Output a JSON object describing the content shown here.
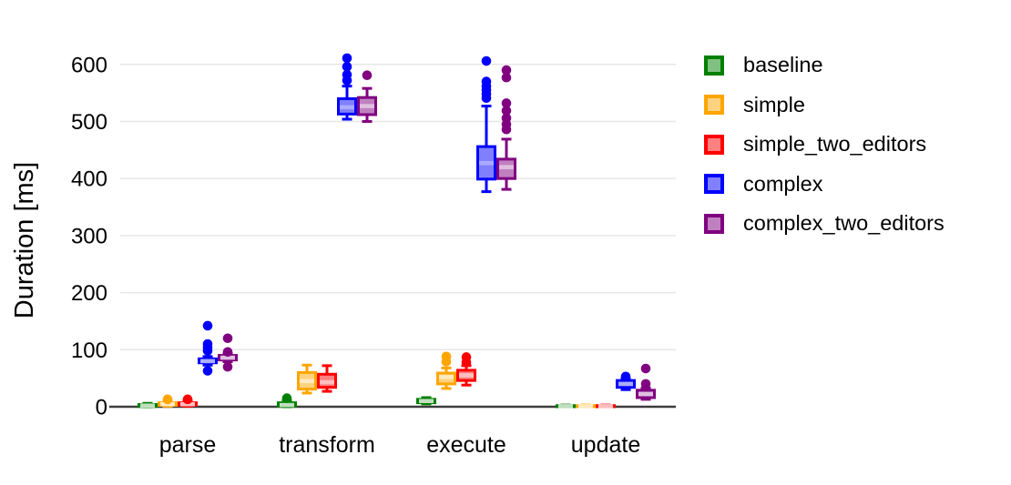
{
  "chart_data": {
    "type": "boxplot",
    "title": "",
    "ylabel": "Duration [ms]",
    "xlabel": "",
    "ylim": [
      0,
      620
    ],
    "yticks": [
      0,
      100,
      200,
      300,
      400,
      500,
      600
    ],
    "grid": "horizontal",
    "legend_position": "right-outside",
    "categories": [
      "parse",
      "transform",
      "execute",
      "update"
    ],
    "series": [
      {
        "name": "baseline",
        "color": "#008000",
        "fill": "#80C080",
        "median_color": "#BFDFBF",
        "boxes": [
          {
            "category": "parse",
            "low": 0,
            "q1": 0.5,
            "median": 2,
            "q3": 4,
            "high": 6,
            "outliers": []
          },
          {
            "category": "transform",
            "low": 0,
            "q1": 1,
            "median": 3,
            "q3": 7,
            "high": 11,
            "outliers": [
              15
            ]
          },
          {
            "category": "execute",
            "low": 5,
            "q1": 7,
            "median": 10,
            "q3": 13,
            "high": 16,
            "outliers": []
          },
          {
            "category": "update",
            "low": 0,
            "q1": 0,
            "median": 1,
            "q3": 2,
            "high": 3,
            "outliers": []
          }
        ]
      },
      {
        "name": "simple",
        "color": "#FFA500",
        "fill": "#FFD280",
        "median_color": "#FFE9BF",
        "boxes": [
          {
            "category": "parse",
            "low": 1,
            "q1": 2.5,
            "median": 4.5,
            "q3": 7,
            "high": 10,
            "outliers": [
              13
            ]
          },
          {
            "category": "transform",
            "low": 24,
            "q1": 31,
            "median": 45,
            "q3": 60,
            "high": 73,
            "outliers": []
          },
          {
            "category": "execute",
            "low": 32,
            "q1": 40,
            "median": 52,
            "q3": 59,
            "high": 68,
            "outliers": [
              88,
              79
            ]
          },
          {
            "category": "update",
            "low": 0,
            "q1": 0,
            "median": 1,
            "q3": 2,
            "high": 3,
            "outliers": []
          }
        ]
      },
      {
        "name": "simple_two_editors",
        "color": "#FF0000",
        "fill": "#FF8080",
        "median_color": "#FFBFBF",
        "boxes": [
          {
            "category": "parse",
            "low": 1,
            "q1": 2.5,
            "median": 4.5,
            "q3": 7,
            "high": 10,
            "outliers": [
              13
            ]
          },
          {
            "category": "transform",
            "low": 27,
            "q1": 34,
            "median": 43,
            "q3": 57,
            "high": 72,
            "outliers": []
          },
          {
            "category": "execute",
            "low": 38,
            "q1": 46,
            "median": 55,
            "q3": 64,
            "high": 72,
            "outliers": [
              87,
              78
            ]
          },
          {
            "category": "update",
            "low": 0,
            "q1": 0,
            "median": 1,
            "q3": 2,
            "high": 3,
            "outliers": []
          }
        ]
      },
      {
        "name": "complex",
        "color": "#0000FF",
        "fill": "#8080FF",
        "median_color": "#ABABFF",
        "boxes": [
          {
            "category": "parse",
            "low": 73,
            "q1": 77,
            "median": 80,
            "q3": 84,
            "high": 88,
            "outliers": [
              142,
              110,
              104,
              98,
              63
            ]
          },
          {
            "category": "transform",
            "low": 504,
            "q1": 513,
            "median": 525,
            "q3": 540,
            "high": 562,
            "outliers": [
              611,
              596,
              582,
              572
            ]
          },
          {
            "category": "execute",
            "low": 377,
            "q1": 399,
            "median": 427,
            "q3": 456,
            "high": 527,
            "outliers": [
              606,
              570,
              562,
              555,
              548,
              541
            ]
          },
          {
            "category": "update",
            "low": 30,
            "q1": 34,
            "median": 40,
            "q3": 46,
            "high": 49,
            "outliers": [
              53
            ]
          }
        ]
      },
      {
        "name": "complex_two_editors",
        "color": "#800080",
        "fill": "#C080C0",
        "median_color": "#DFBFDF",
        "boxes": [
          {
            "category": "parse",
            "low": 79,
            "q1": 82,
            "median": 86,
            "q3": 90,
            "high": 93,
            "outliers": [
              120,
              96,
              70
            ]
          },
          {
            "category": "transform",
            "low": 500,
            "q1": 512,
            "median": 527,
            "q3": 542,
            "high": 558,
            "outliers": [
              581
            ]
          },
          {
            "category": "execute",
            "low": 381,
            "q1": 400,
            "median": 420,
            "q3": 434,
            "high": 469,
            "outliers": [
              590,
              577,
              532,
              519,
              506,
              495,
              486
            ]
          },
          {
            "category": "update",
            "low": 13,
            "q1": 16,
            "median": 22,
            "q3": 29,
            "high": 33,
            "outliers": [
              67,
              40
            ]
          }
        ]
      }
    ]
  }
}
